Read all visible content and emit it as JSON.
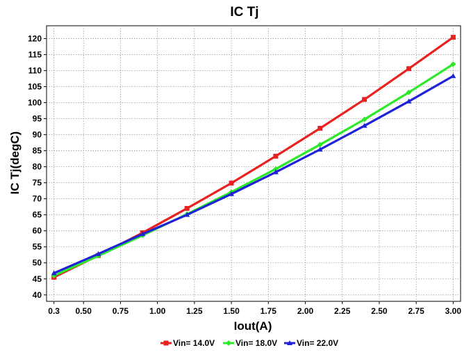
{
  "chart_data": {
    "type": "line",
    "title": "IC Tj",
    "xlabel": "Iout(A)",
    "ylabel": "IC Tj(degC)",
    "xlim": [
      0.25,
      3.05
    ],
    "ylim": [
      38,
      124
    ],
    "xticks": [
      0.3,
      0.5,
      0.75,
      1.0,
      1.25,
      1.5,
      1.75,
      2.0,
      2.25,
      2.5,
      2.75,
      3.0
    ],
    "xtick_labels": [
      "0.3",
      "0.50",
      "0.75",
      "1.00",
      "1.25",
      "1.50",
      "1.75",
      "2.00",
      "2.25",
      "2.50",
      "2.75",
      "3.00"
    ],
    "yticks": [
      40,
      45,
      50,
      55,
      60,
      65,
      70,
      75,
      80,
      85,
      90,
      95,
      100,
      105,
      110,
      115,
      120
    ],
    "ytick_labels": [
      "40",
      "45",
      "50",
      "55",
      "60",
      "65",
      "70",
      "75",
      "80",
      "85",
      "90",
      "95",
      "100",
      "105",
      "110",
      "115",
      "120"
    ],
    "grid": true,
    "legend_position": "bottom-center",
    "x": [
      0.3,
      0.6,
      0.9,
      1.2,
      1.5,
      1.8,
      2.1,
      2.4,
      2.7,
      3.0
    ],
    "series": [
      {
        "name": "Vin= 14.0V",
        "color": "#e8221f",
        "marker": "square",
        "values": [
          45.5,
          52.3,
          59.4,
          67.0,
          74.9,
          83.3,
          92.0,
          101.0,
          110.6,
          120.4
        ]
      },
      {
        "name": "Vin= 18.0V",
        "color": "#2ee82a",
        "marker": "diamond",
        "values": [
          46.0,
          52.2,
          58.6,
          65.2,
          72.1,
          79.3,
          86.9,
          94.8,
          103.2,
          112.0
        ]
      },
      {
        "name": "Vin= 22.0V",
        "color": "#1f23d6",
        "marker": "triangle",
        "values": [
          46.8,
          52.8,
          59.0,
          65.0,
          71.5,
          78.3,
          85.4,
          92.8,
          100.4,
          108.3
        ]
      }
    ]
  }
}
